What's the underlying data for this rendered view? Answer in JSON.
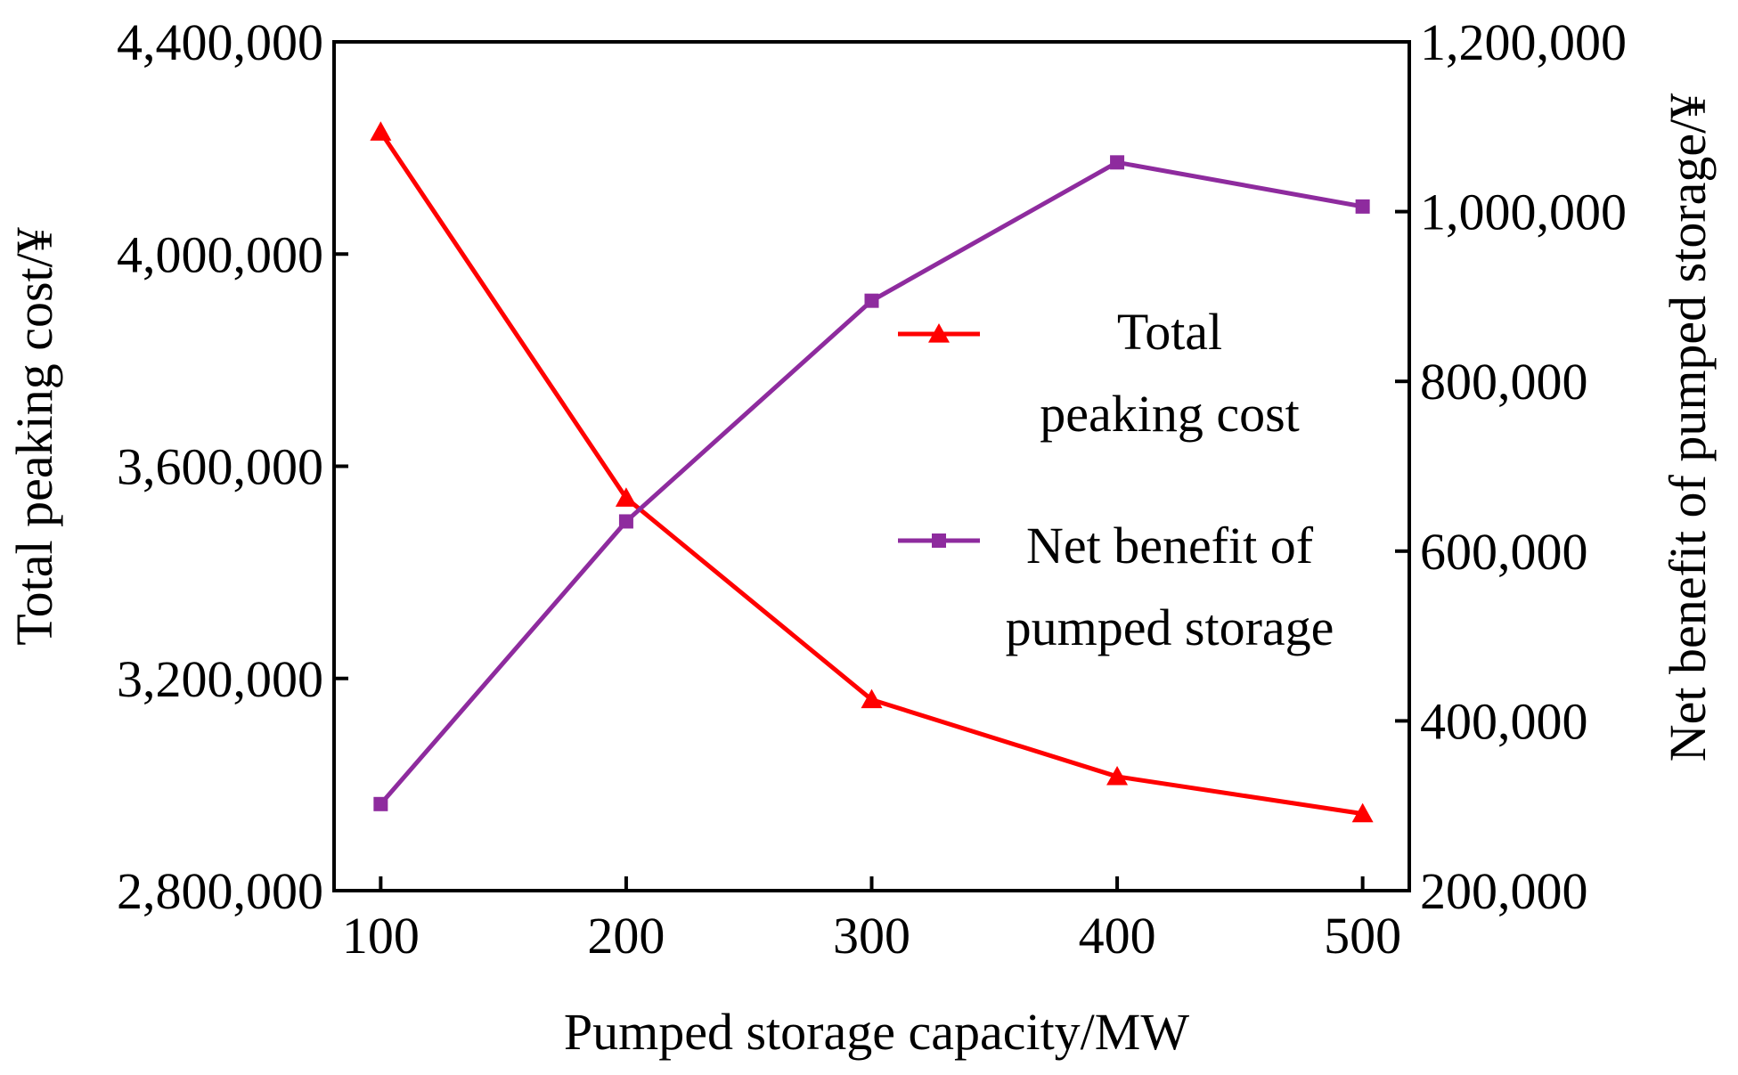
{
  "chart_data": {
    "type": "line",
    "title": "",
    "xlabel": "Pumped storage capacity/MW",
    "ylabel_left": "Total peaking cost/¥",
    "ylabel_right": "Net benefit of pumped storage/¥",
    "x": [
      100,
      200,
      300,
      400,
      500
    ],
    "x_tick_labels": [
      "100",
      "200",
      "300",
      "400",
      "500"
    ],
    "xlim": [
      81,
      519
    ],
    "ylim_left": [
      2800000,
      4400000
    ],
    "ylim_right": [
      200000,
      1200000
    ],
    "y_left_ticks": [
      2800000,
      3200000,
      3600000,
      4000000,
      4400000
    ],
    "y_left_tick_labels": [
      "2,800,000",
      "3,200,000",
      "3,600,000",
      "4,000,000",
      "4,400,000"
    ],
    "y_right_ticks": [
      200000,
      400000,
      600000,
      800000,
      1000000,
      1200000
    ],
    "y_right_tick_labels": [
      "200,000",
      "400,000",
      "600,000",
      "800,000",
      "1,000,000",
      "1,200,000"
    ],
    "series": [
      {
        "name": "Total peaking cost",
        "legend_lines": [
          "Total",
          "peaking cost"
        ],
        "axis": "left",
        "marker": "triangle",
        "color": "#ff0000",
        "values": [
          4230000,
          3540000,
          3160000,
          3015000,
          2945000
        ]
      },
      {
        "name": "Net benefit of pumped storage",
        "legend_lines": [
          "Net benefit of",
          "pumped storage"
        ],
        "axis": "right",
        "marker": "square",
        "color": "#8e2b9e",
        "values": [
          302000,
          635000,
          895000,
          1058000,
          1006000
        ]
      }
    ],
    "grid": false,
    "legend_position": "center-right"
  }
}
